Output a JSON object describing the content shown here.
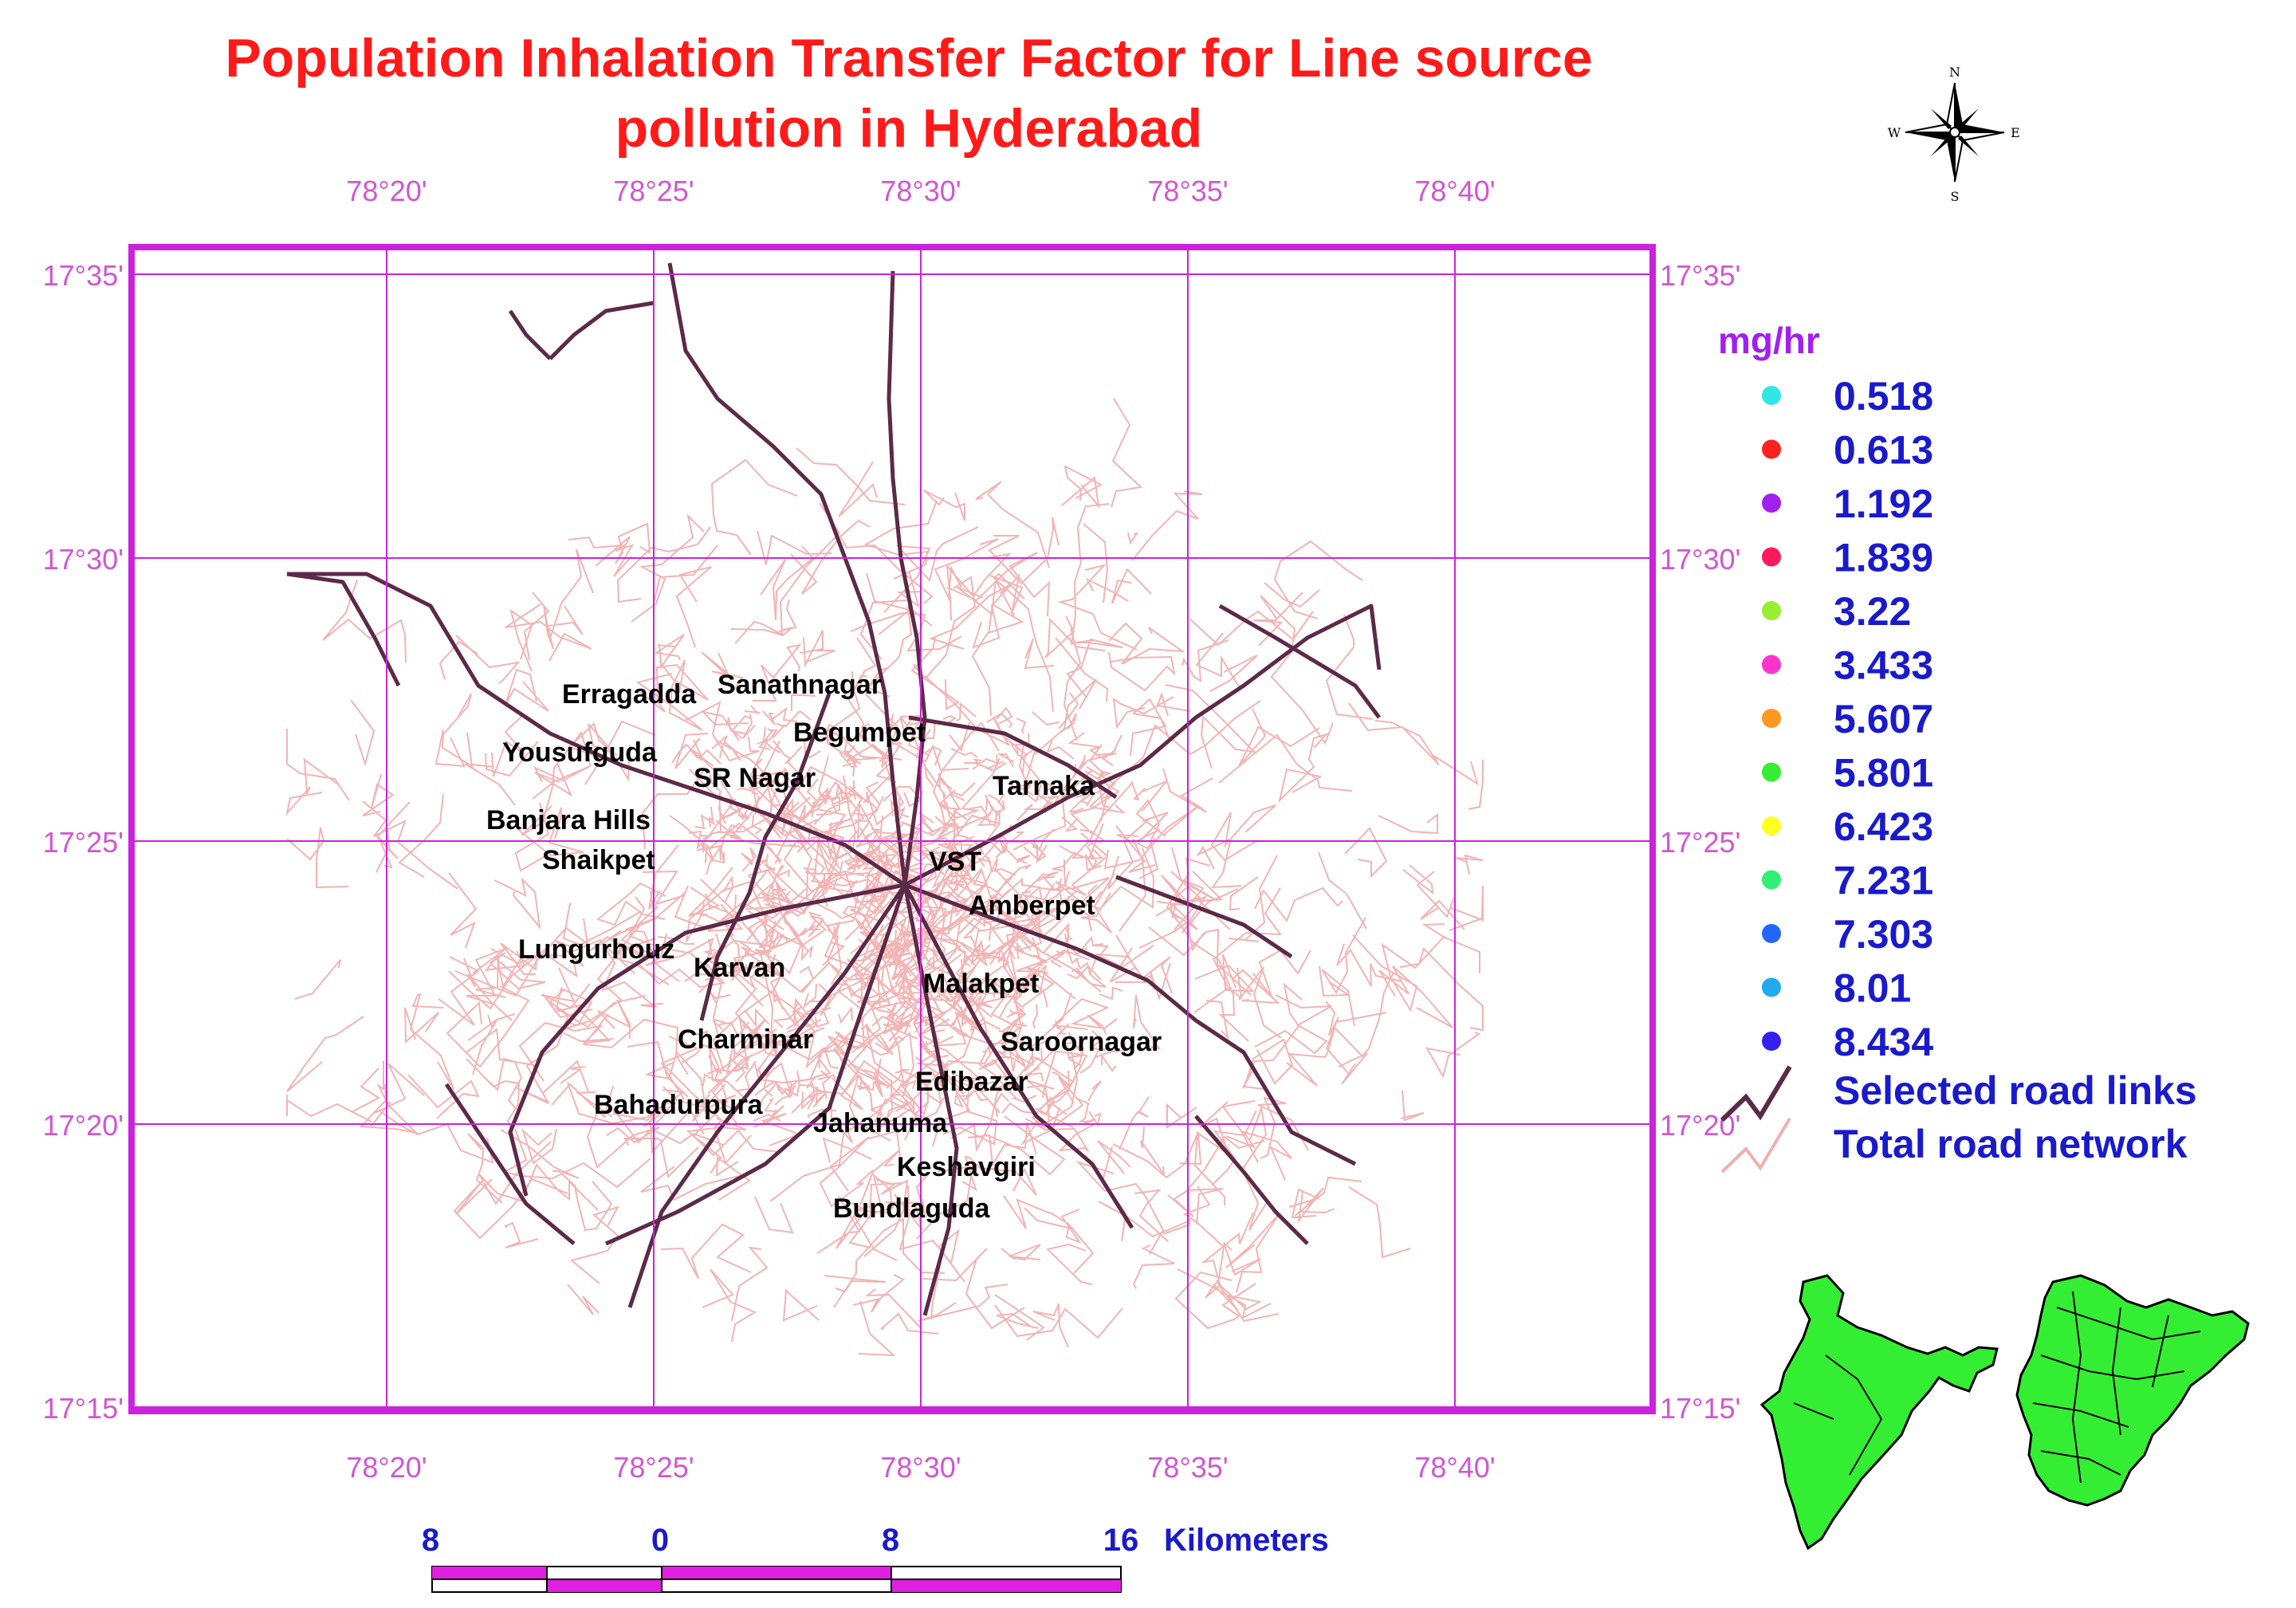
{
  "title": {
    "line1": "Population Inhalation Transfer Factor for Line source",
    "line2": "pollution in Hyderabad"
  },
  "compass": {
    "n": "N",
    "s": "S",
    "e": "E",
    "w": "W",
    "icon": "north-arrow-icon"
  },
  "grid": {
    "longitudes": [
      "78°20'",
      "78°25'",
      "78°30'",
      "78°35'",
      "78°40'"
    ],
    "latitudes": [
      "17°35'",
      "17°30'",
      "17°25'",
      "17°20'",
      "17°15'"
    ]
  },
  "places": [
    {
      "name": "Erragadda"
    },
    {
      "name": "Sanathnagar"
    },
    {
      "name": "Begumpet"
    },
    {
      "name": "Yousufguda"
    },
    {
      "name": "SR Nagar"
    },
    {
      "name": "Tarnaka"
    },
    {
      "name": "Banjara Hills"
    },
    {
      "name": "Shaikpet"
    },
    {
      "name": "VST"
    },
    {
      "name": "Amberpet"
    },
    {
      "name": "Lungurhouz"
    },
    {
      "name": "Karvan"
    },
    {
      "name": "Malakpet"
    },
    {
      "name": "Charminar"
    },
    {
      "name": "Saroornagar"
    },
    {
      "name": "Edibazar"
    },
    {
      "name": "Bahadurpura"
    },
    {
      "name": "Jahanuma"
    },
    {
      "name": "Keshavgiri"
    },
    {
      "name": "Bundlaguda"
    }
  ],
  "legend": {
    "unit": "mg/hr",
    "items": [
      {
        "value": "0.518",
        "color": "#33e6e6"
      },
      {
        "value": "0.613",
        "color": "#ff2020"
      },
      {
        "value": "1.192",
        "color": "#a020f0"
      },
      {
        "value": "1.839",
        "color": "#ff1a5e"
      },
      {
        "value": "3.22",
        "color": "#99ee33"
      },
      {
        "value": "3.433",
        "color": "#ff33cc"
      },
      {
        "value": "5.607",
        "color": "#ff9922"
      },
      {
        "value": "5.801",
        "color": "#33ee33"
      },
      {
        "value": "6.423",
        "color": "#ffff22"
      },
      {
        "value": "7.231",
        "color": "#33ee77"
      },
      {
        "value": "7.303",
        "color": "#2266ff"
      },
      {
        "value": "8.01",
        "color": "#22aaee"
      },
      {
        "value": "8.434",
        "color": "#3322ee"
      }
    ],
    "selected_roads": "Selected road links",
    "total_network": "Total road network",
    "selected_color": "#5c2a48",
    "total_color": "#f0b0b0"
  },
  "scale_bar": {
    "labels": [
      "8",
      "0",
      "8",
      "16"
    ],
    "unit": "Kilometers"
  },
  "colors": {
    "frame": "#cc22dd",
    "grid": "#cc22dd",
    "road_minor": "#f2b4b4",
    "road_major": "#5c2a48",
    "inset_fill": "#33ee33"
  }
}
